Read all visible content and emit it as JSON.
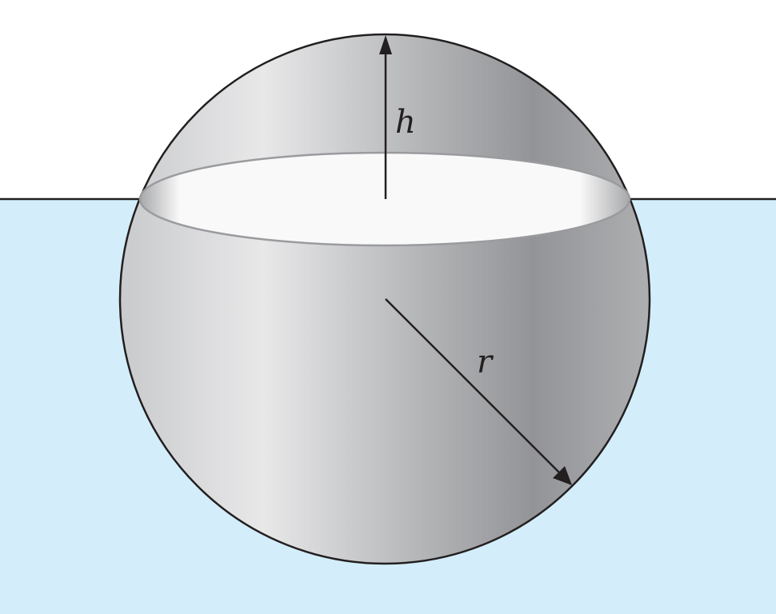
{
  "diagram": {
    "labels": {
      "height": "h",
      "radius": "r"
    },
    "colors": {
      "water": "#d3eefa",
      "background": "#ffffff",
      "outline": "#231f20",
      "cross_section_fill": "#f9f9f9",
      "cross_section_rim": "#9a9b9e",
      "sphere_light": "#e8e8e9",
      "sphere_dark": "#939497"
    }
  }
}
